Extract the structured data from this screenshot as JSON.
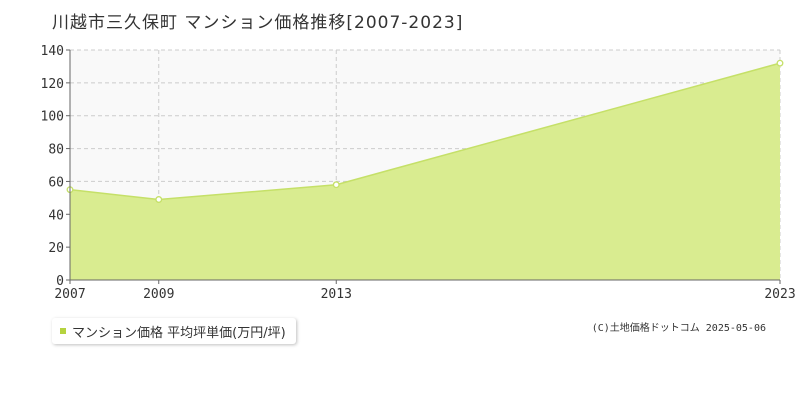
{
  "title": "川越市三久保町 マンション価格推移[2007-2023]",
  "legend": {
    "label": "マンション価格 平均坪単価(万円/坪)"
  },
  "credit": "(C)土地価格ドットコム 2025-05-06",
  "colors": {
    "area_fill": "#d9ec90",
    "line": "#c5e068",
    "marker_stroke": "#c5e068",
    "legend_marker": "#b5d33f",
    "plot_bg": "#f9f9f9",
    "grid": "#cccccc",
    "axis": "#666666",
    "text": "#333333"
  },
  "chart_data": {
    "type": "area",
    "title": "川越市三久保町 マンション価格推移[2007-2023]",
    "x": [
      "2007",
      "2009",
      "2013",
      "2023"
    ],
    "xlabel": "",
    "ylabel": "",
    "ylim": [
      0,
      140
    ],
    "yticks": [
      0,
      20,
      40,
      60,
      80,
      100,
      120,
      140
    ],
    "grid": true,
    "legend_position": "bottom-left",
    "series": [
      {
        "name": "マンション価格 平均坪単価(万円/坪)",
        "values": [
          55,
          49,
          58,
          132
        ]
      }
    ]
  }
}
